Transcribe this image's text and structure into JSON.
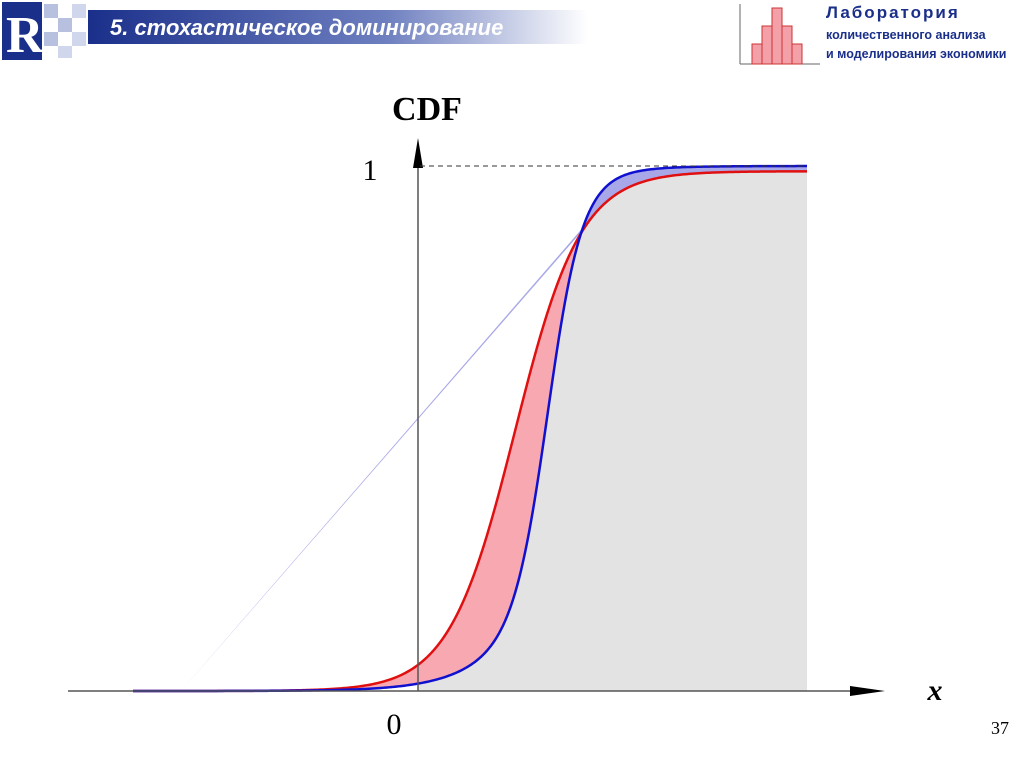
{
  "header": {
    "title": "5. стохастическое доминирование",
    "lab": [
      "Лаборатория",
      "количественного анализа",
      "и моделирования экономики"
    ]
  },
  "figure": {
    "y_label": "CDF",
    "x_label": "x",
    "y_top": "1",
    "origin": "0"
  },
  "page_number": "37"
}
